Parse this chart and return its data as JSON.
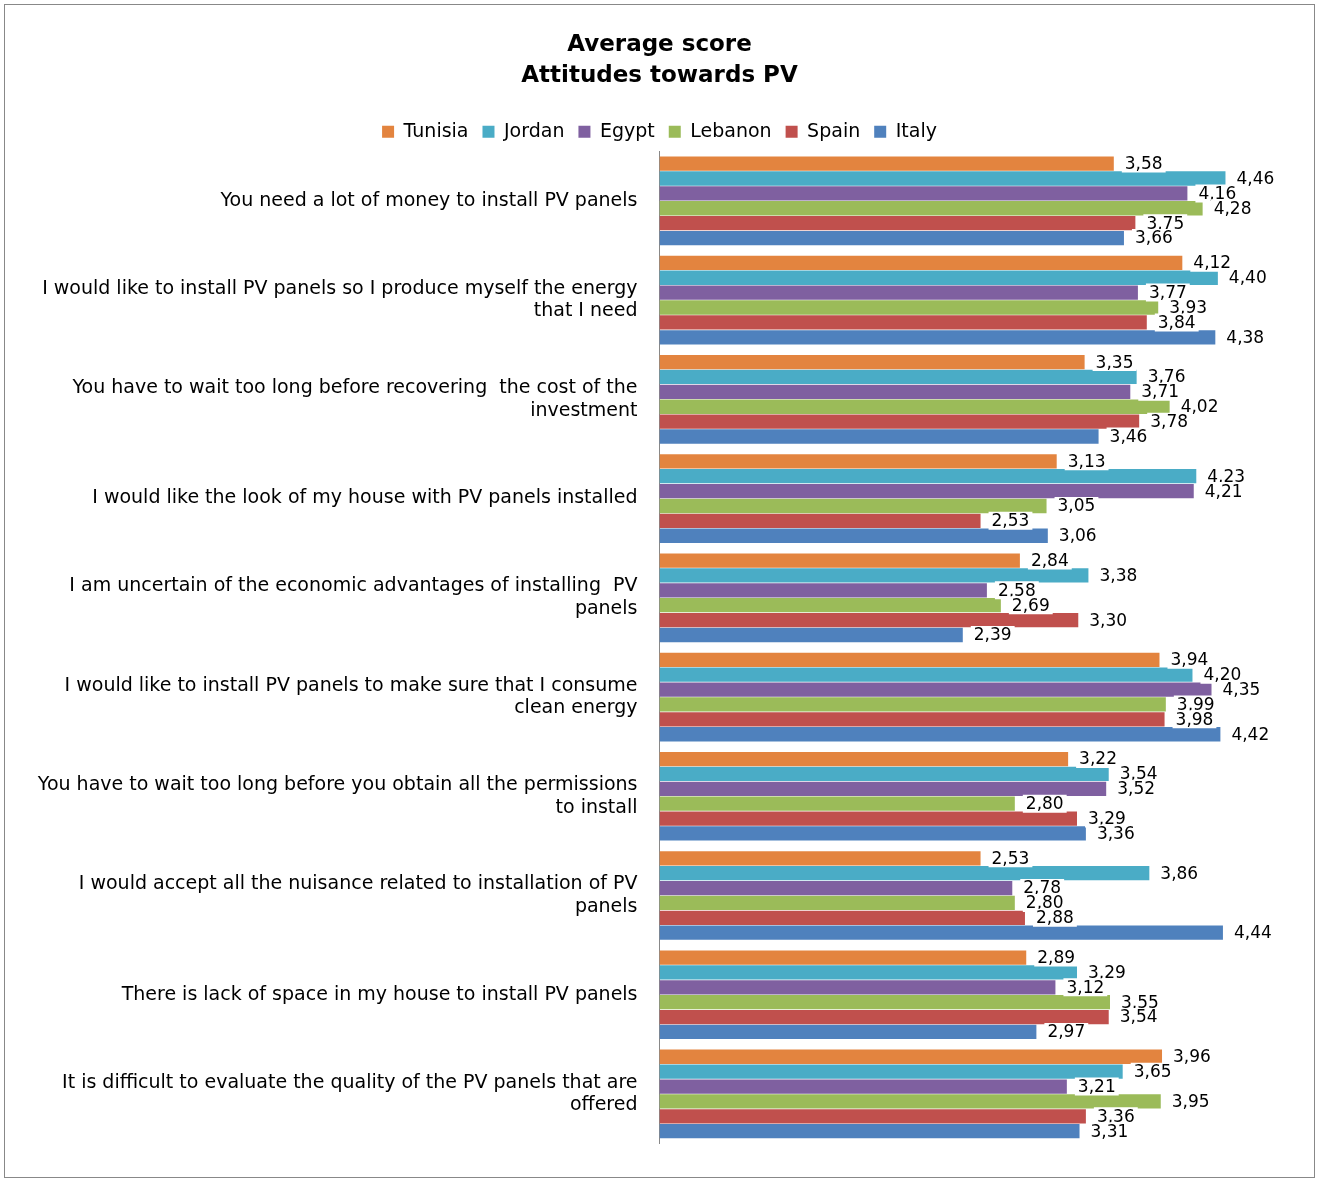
{
  "chart_data": {
    "type": "bar",
    "orientation": "horizontal",
    "title": "Average score",
    "subtitle": "Attitudes towards PV",
    "legend": "top",
    "grid": false,
    "tick_labels": "y",
    "categories": [
      "You need a lot of money to install PV panels",
      "I would like to install PV panels so I produce myself the energy that I need",
      "You have to wait too long before recovering  the cost of the investment",
      "I would like the look of my house with PV panels installed",
      "I am uncertain of the economic advantages of installing  PV panels",
      "I would like to install PV panels to make sure that I consume clean energy",
      "You have to wait too long before you obtain all the permissions to install",
      "I would accept all the nuisance related to installation of PV panels",
      "There is lack of space in my house to install PV panels",
      "It is difficult to evaluate the quality of the PV panels that are offered"
    ],
    "series": [
      {
        "name": "Tunisia",
        "color": "#e3843f",
        "values": [
          3.58,
          4.12,
          3.35,
          3.13,
          2.84,
          3.94,
          3.22,
          2.53,
          2.89,
          3.96
        ],
        "value_labels": [
          "3,58",
          "4,12",
          "3,35",
          "3,13",
          "2,84",
          "3,94",
          "3,22",
          "2,53",
          "2,89",
          "3,96"
        ]
      },
      {
        "name": "Jordan",
        "color": "#4aacc6",
        "values": [
          4.46,
          4.4,
          3.76,
          4.23,
          3.38,
          4.2,
          3.54,
          3.86,
          3.29,
          3.65
        ],
        "value_labels": [
          "4,46",
          "4,40",
          "3,76",
          "4,23",
          "3,38",
          "4,20",
          "3,54",
          "3,86",
          "3,29",
          "3,65"
        ]
      },
      {
        "name": "Egypt",
        "color": "#7f60a0",
        "values": [
          4.16,
          3.77,
          3.71,
          4.21,
          2.58,
          4.35,
          3.52,
          2.78,
          3.12,
          3.21
        ],
        "value_labels": [
          "4,16",
          "3,77",
          "3,71",
          "4,21",
          "2,58",
          "4,35",
          "3,52",
          "2,78",
          "3,12",
          "3,21"
        ]
      },
      {
        "name": "Lebanon",
        "color": "#9bbb59",
        "values": [
          4.28,
          3.93,
          4.02,
          3.05,
          2.69,
          3.99,
          2.8,
          2.8,
          3.55,
          3.95
        ],
        "value_labels": [
          "4,28",
          "3,93",
          "4,02",
          "3,05",
          "2,69",
          "3,99",
          "2,80",
          "2,80",
          "3,55",
          "3,95"
        ]
      },
      {
        "name": "Spain",
        "color": "#c0504d",
        "values": [
          3.75,
          3.84,
          3.78,
          2.53,
          3.3,
          3.98,
          3.29,
          2.88,
          3.54,
          3.36
        ],
        "value_labels": [
          "3,75",
          "3,84",
          "3,78",
          "2,53",
          "3,30",
          "3,98",
          "3,29",
          "2,88",
          "3,54",
          "3,36"
        ]
      },
      {
        "name": "Italy",
        "color": "#4f81bd",
        "values": [
          3.66,
          4.38,
          3.46,
          3.06,
          2.39,
          4.42,
          3.36,
          4.44,
          2.97,
          3.31
        ],
        "value_labels": [
          "3,66",
          "4,38",
          "3,46",
          "3,06",
          "2,39",
          "4,42",
          "3,36",
          "4,44",
          "2,97",
          "3,31"
        ]
      }
    ]
  }
}
